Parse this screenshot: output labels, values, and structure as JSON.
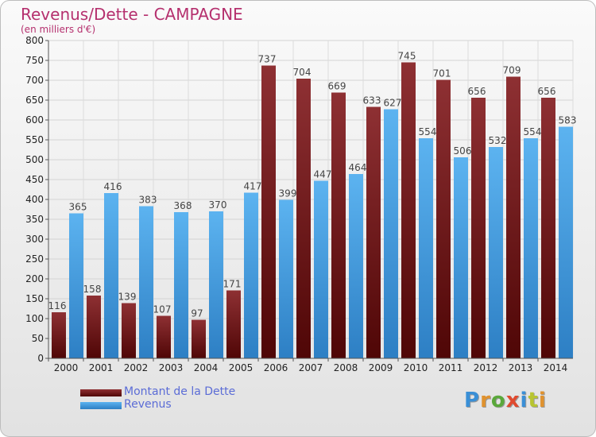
{
  "header": {
    "title": "Revenus/Dette - CAMPAGNE",
    "subtitle": "(en milliers d'€)"
  },
  "chart_data": {
    "type": "bar",
    "categories": [
      "2000",
      "2001",
      "2002",
      "2003",
      "2004",
      "2005",
      "2006",
      "2007",
      "2008",
      "2009",
      "2010",
      "2011",
      "2012",
      "2013",
      "2014"
    ],
    "series": [
      {
        "name": "Montant de la Dette",
        "color": "#8b2a2c",
        "values": [
          116,
          158,
          139,
          107,
          97,
          171,
          737,
          704,
          669,
          633,
          745,
          701,
          656,
          709,
          656
        ]
      },
      {
        "name": "Revenus",
        "color": "#4aa3e3",
        "values": [
          365,
          416,
          383,
          368,
          370,
          417,
          399,
          447,
          464,
          627,
          554,
          506,
          532,
          554,
          583
        ]
      }
    ],
    "ylim": [
      0,
      800
    ],
    "yticks": [
      0,
      50,
      100,
      150,
      200,
      250,
      300,
      350,
      400,
      450,
      500,
      550,
      600,
      650,
      700,
      750,
      800
    ],
    "grid": true,
    "legend_position": "bottom-left"
  },
  "legend": {
    "items": [
      {
        "label": "Montant de la Dette",
        "color": "#8b2a2c"
      },
      {
        "label": "Revenus",
        "color": "#4aa3e3"
      }
    ]
  },
  "logo": {
    "text": "Proxiti"
  }
}
